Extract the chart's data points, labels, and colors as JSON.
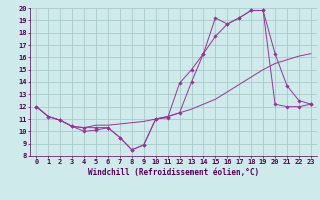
{
  "xlabel": "Windchill (Refroidissement éolien,°C)",
  "background_color": "#ceeaea",
  "grid_color": "#aacaca",
  "line_color": "#993399",
  "xlim": [
    -0.5,
    23.5
  ],
  "ylim": [
    8,
    20
  ],
  "xticks": [
    0,
    1,
    2,
    3,
    4,
    5,
    6,
    7,
    8,
    9,
    10,
    11,
    12,
    13,
    14,
    15,
    16,
    17,
    18,
    19,
    20,
    21,
    22,
    23
  ],
  "yticks": [
    8,
    9,
    10,
    11,
    12,
    13,
    14,
    15,
    16,
    17,
    18,
    19,
    20
  ],
  "line1_x": [
    0,
    1,
    2,
    3,
    4,
    5,
    6,
    7,
    8,
    9,
    10,
    11,
    12,
    13,
    14,
    15,
    16,
    17,
    18,
    19,
    20,
    21,
    22,
    23
  ],
  "line1_y": [
    12.0,
    11.2,
    10.9,
    10.4,
    10.3,
    10.3,
    10.3,
    9.5,
    8.5,
    8.9,
    11.0,
    11.1,
    13.9,
    15.0,
    16.3,
    19.2,
    18.7,
    19.2,
    19.8,
    19.8,
    16.3,
    13.7,
    12.5,
    12.2
  ],
  "line2_x": [
    0,
    1,
    2,
    3,
    4,
    5,
    6,
    7,
    8,
    9,
    10,
    11,
    12,
    13,
    14,
    15,
    16,
    17,
    18,
    19,
    20,
    21,
    22,
    23
  ],
  "line2_y": [
    12.0,
    11.2,
    10.9,
    10.4,
    10.3,
    10.5,
    10.5,
    10.6,
    10.7,
    10.8,
    11.0,
    11.2,
    11.5,
    11.8,
    12.2,
    12.6,
    13.2,
    13.8,
    14.4,
    15.0,
    15.5,
    15.8,
    16.1,
    16.3
  ],
  "line3_x": [
    0,
    1,
    2,
    3,
    4,
    5,
    6,
    7,
    8,
    9,
    10,
    11,
    12,
    13,
    14,
    15,
    16,
    17,
    18,
    19,
    20,
    21,
    22,
    23
  ],
  "line3_y": [
    12.0,
    11.2,
    10.9,
    10.4,
    10.0,
    10.1,
    10.3,
    9.5,
    8.5,
    8.9,
    11.0,
    11.2,
    11.5,
    14.0,
    16.3,
    17.7,
    18.7,
    19.2,
    19.8,
    19.8,
    12.2,
    12.0,
    12.0,
    12.2
  ],
  "tick_fontsize": 5.0,
  "xlabel_fontsize": 5.5
}
